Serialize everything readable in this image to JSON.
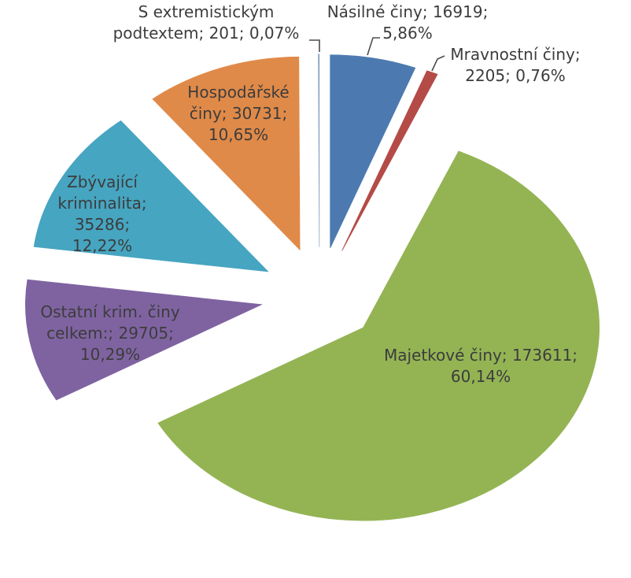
{
  "chart_data": {
    "type": "pie",
    "title": "",
    "legend": "none",
    "start_angle_deg": 0,
    "direction": "clockwise",
    "explode_fraction": 0.25,
    "label_format": "name; value; percent",
    "slices": [
      {
        "id": "nasilne-ciny",
        "name": "Násilné činy",
        "value": 16919,
        "percent": "5,86%",
        "color": "#4C7AB0"
      },
      {
        "id": "mravnostni-ciny",
        "name": "Mravnostní činy",
        "value": 2205,
        "percent": "0,76%",
        "color": "#B44B47"
      },
      {
        "id": "majetkove-ciny",
        "name": "Majetkové činy",
        "value": 173611,
        "percent": "60,14%",
        "color": "#94B454"
      },
      {
        "id": "ostatni-krim-ciny-celkem",
        "name": "Ostatní krim. činy celkem:",
        "value": 29705,
        "percent": "10,29%",
        "color": "#7F63A1"
      },
      {
        "id": "zbyvajici-kriminalita",
        "name": "Zbývající kriminalita",
        "value": 35286,
        "percent": "12,22%",
        "color": "#46A5C1"
      },
      {
        "id": "hospodarske-ciny",
        "name": "Hospodářské činy",
        "value": 30731,
        "percent": "10,65%",
        "color": "#E08A49"
      },
      {
        "id": "s-extremistickym-podtextem",
        "name": "S extremistickým podtextem",
        "value": 201,
        "percent": "0,07%",
        "color": "#93A9C9"
      }
    ]
  },
  "labels": {
    "extremist": {
      "lines": [
        "S extremistickým",
        "podtextem; 201; 0,07%"
      ]
    },
    "nasilne": {
      "lines": [
        "Násilné činy; 16919;",
        "5,86%"
      ]
    },
    "mravnostni": {
      "lines": [
        "Mravnostní činy;",
        "2205; 0,76%"
      ]
    },
    "hospodarske": {
      "lines": [
        "Hospodářské",
        "činy; 30731;",
        "10,65%"
      ]
    },
    "zbyvajici": {
      "lines": [
        "Zbývající",
        "kriminalita;",
        "35286;",
        "12,22%"
      ]
    },
    "ostatni": {
      "lines": [
        "Ostatní krim. činy",
        "celkem:; 29705;",
        "10,29%"
      ]
    },
    "majetkove": {
      "lines": [
        "Majetkové činy; 173611;",
        "60,14%"
      ]
    }
  }
}
